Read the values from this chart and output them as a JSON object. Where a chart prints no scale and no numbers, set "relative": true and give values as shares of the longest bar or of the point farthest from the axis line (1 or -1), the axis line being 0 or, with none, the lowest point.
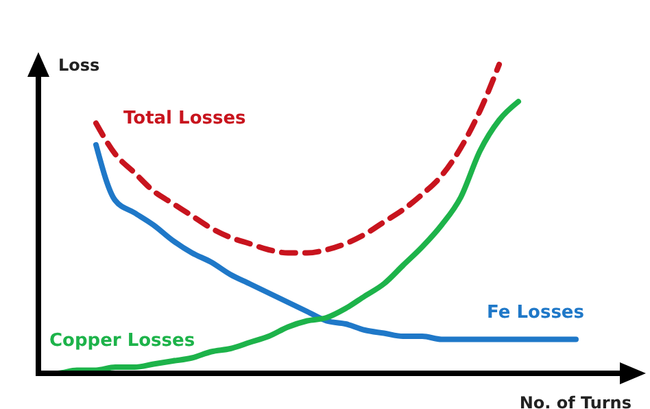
{
  "chart_data": {
    "type": "line",
    "relative": true,
    "xlabel": "No. of Turns",
    "ylabel": "Loss",
    "categories": [
      null,
      null,
      null,
      null,
      null,
      null,
      null,
      null,
      null,
      null,
      null,
      null,
      null,
      null,
      null,
      null,
      null,
      null,
      null,
      null,
      null,
      null,
      null,
      null,
      null,
      null,
      null,
      null,
      null,
      null
    ],
    "series": [
      {
        "name": "Total Losses",
        "color": "#c8141e",
        "line_style": "dashed",
        "values": [
          null,
          null,
          null,
          0.81,
          0.71,
          0.65,
          0.59,
          0.55,
          0.51,
          0.47,
          0.44,
          0.42,
          0.4,
          0.39,
          0.39,
          0.4,
          0.42,
          0.45,
          0.49,
          0.53,
          0.58,
          0.64,
          0.73,
          0.85,
          1.0,
          null,
          null,
          null,
          null,
          null
        ]
      },
      {
        "name": "Fe Losses",
        "color": "#1f78c8",
        "line_style": "solid",
        "values": [
          null,
          null,
          null,
          0.74,
          0.56,
          0.52,
          0.48,
          0.43,
          0.39,
          0.36,
          0.32,
          0.29,
          0.26,
          0.23,
          0.2,
          0.17,
          0.16,
          0.14,
          0.13,
          0.12,
          0.12,
          0.11,
          0.11,
          0.11,
          0.11,
          0.11,
          0.11,
          0.11,
          0.11,
          null
        ]
      },
      {
        "name": "Copper Losses",
        "color": "#1db34a",
        "line_style": "solid",
        "values": [
          0,
          0,
          0.01,
          0.01,
          0.02,
          0.02,
          0.03,
          0.04,
          0.05,
          0.07,
          0.08,
          0.1,
          0.12,
          0.15,
          0.17,
          0.18,
          0.21,
          0.25,
          0.29,
          0.35,
          0.41,
          0.48,
          0.57,
          0.72,
          0.82,
          0.88,
          null,
          null,
          null,
          null
        ]
      }
    ]
  }
}
